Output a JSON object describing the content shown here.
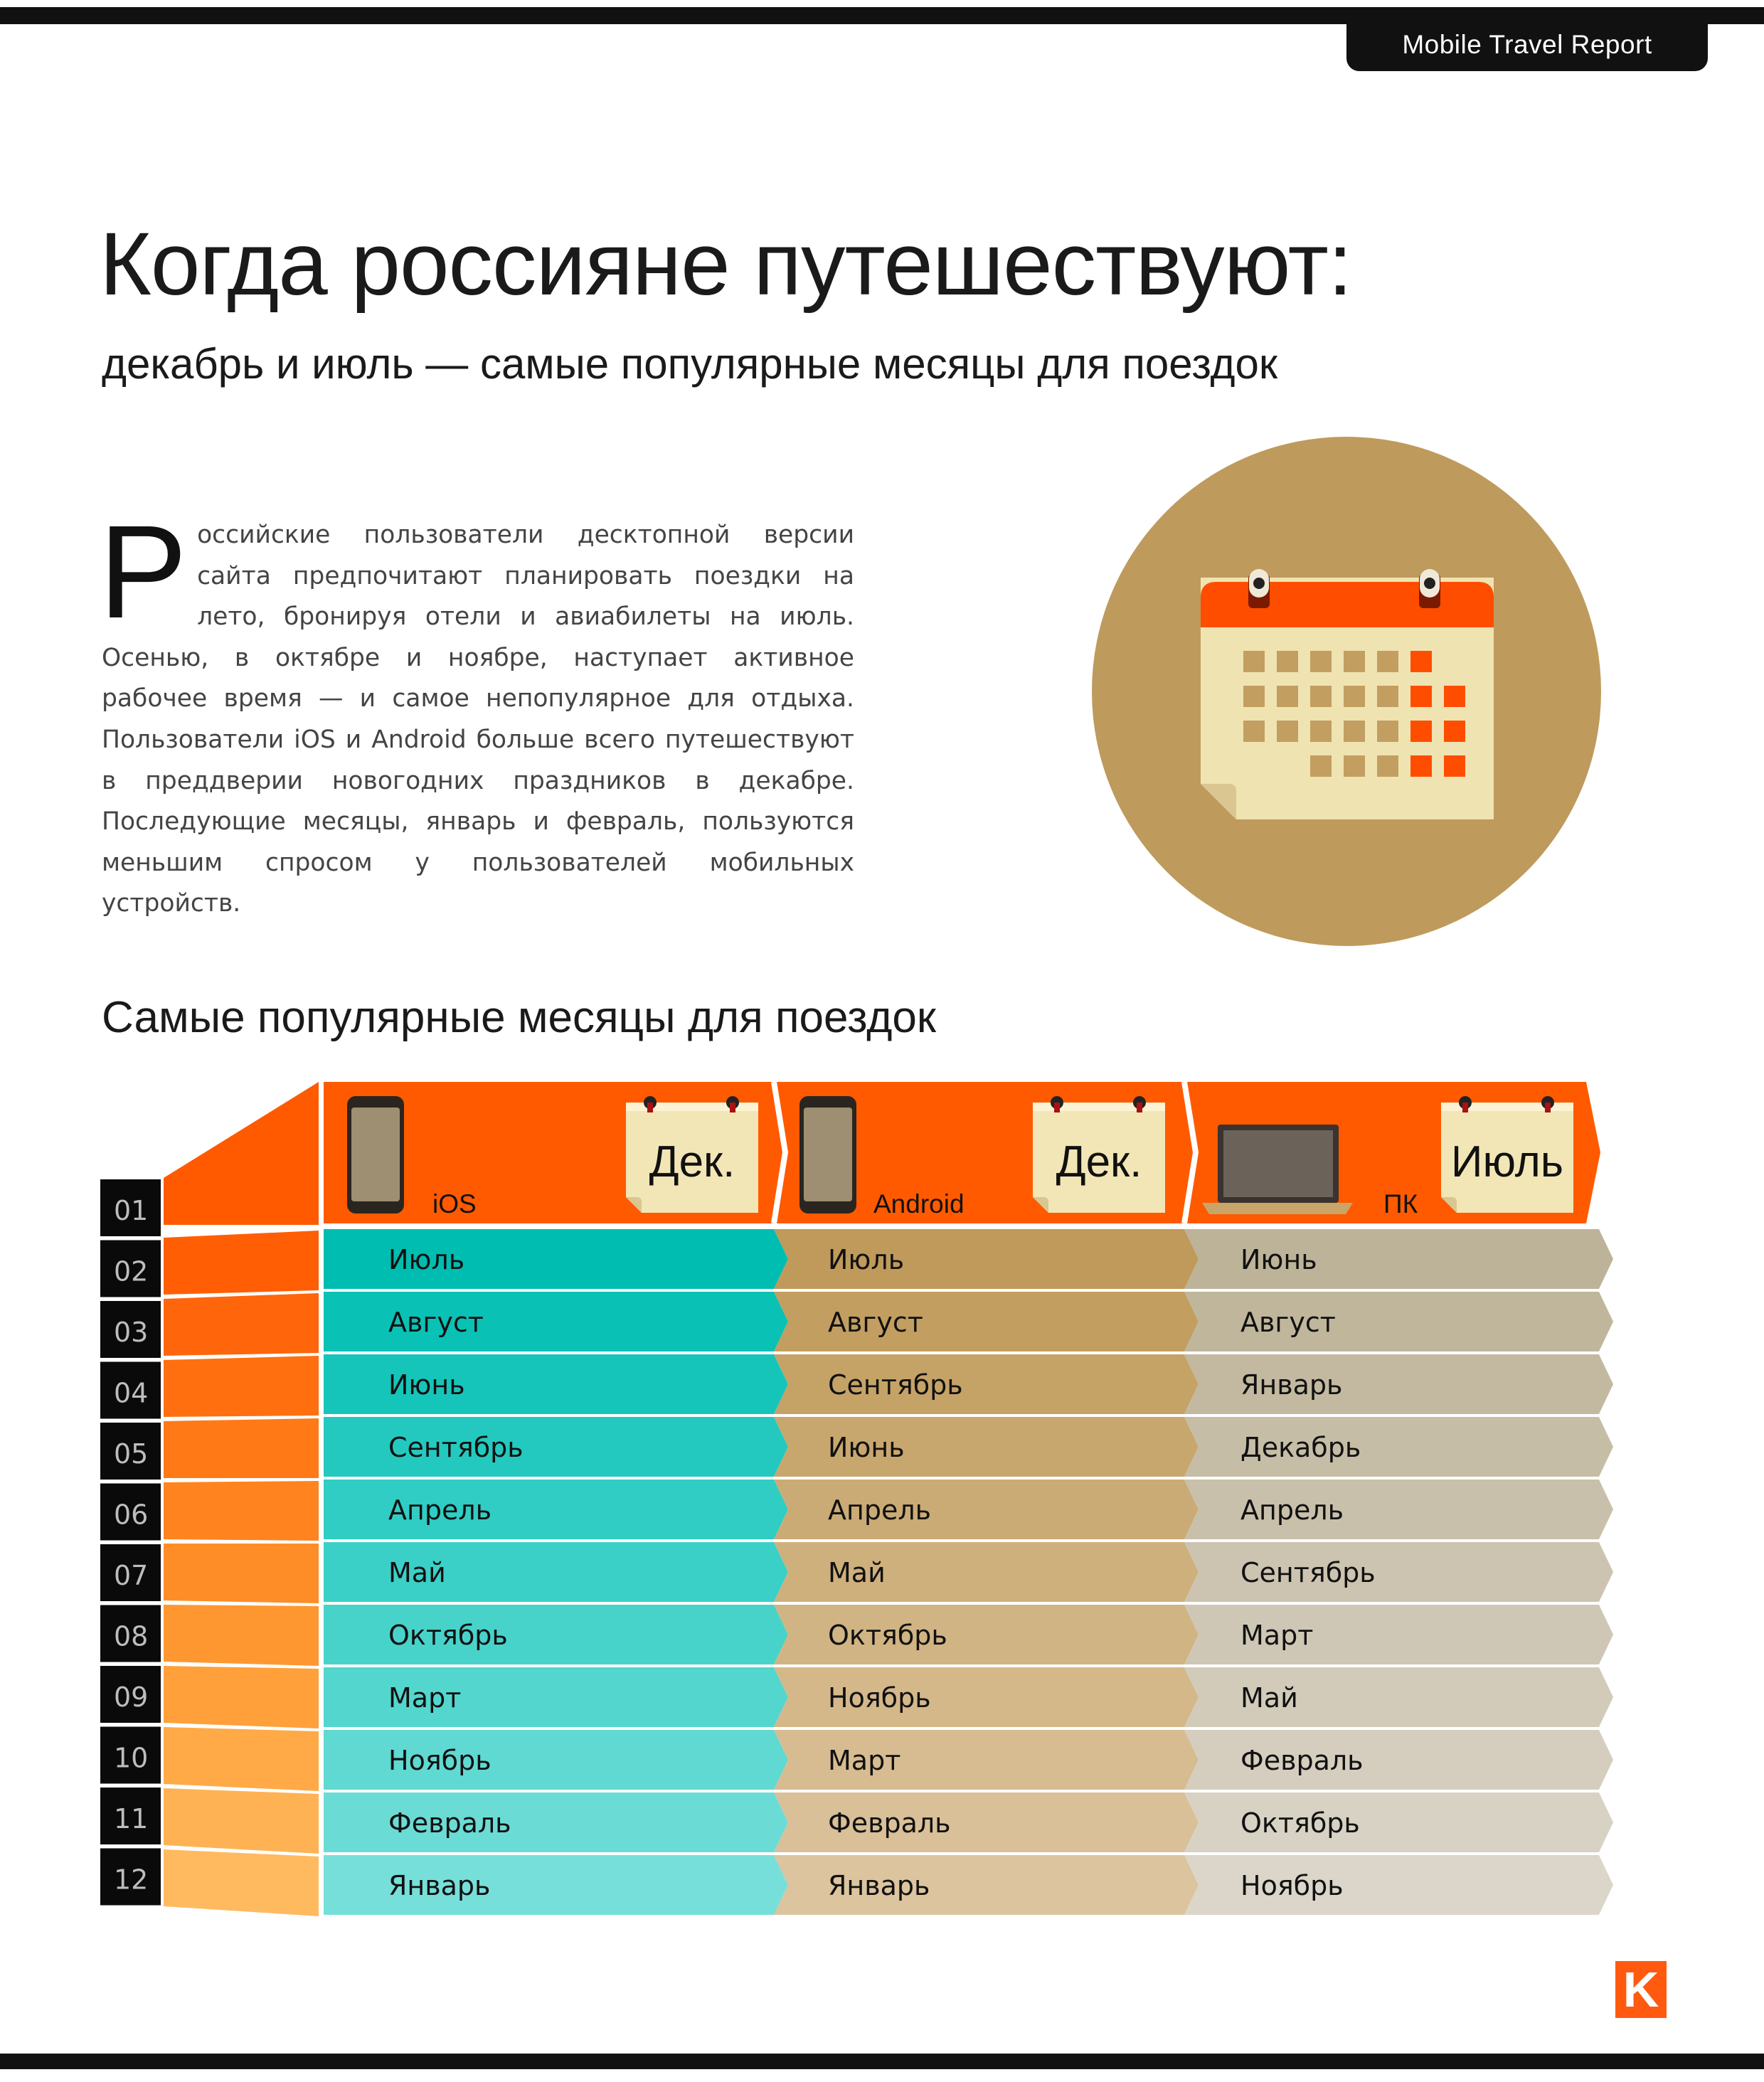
{
  "header": {
    "report_title": "Mobile Travel Report"
  },
  "title": "Когда россияне путешествуют:",
  "subtitle": "декабрь и июль — самые популярные месяцы для поездок",
  "intro": {
    "drop_cap": "Р",
    "text": "оссийские пользователи десктопной версии сайта предпочитают планировать поездки на лето, бронируя отели и авиабилеты на июль. Осенью, в октябре и ноябре, наступает активное рабочее время — и самое непопулярное для отдыха. Пользователи iOS и Android больше всего путешествуют в преддверии новогодних праздников в декабре. Последующие месяцы, январь и февраль, пользуются меньшим спросом у пользователей мобильных устройств."
  },
  "section_title": "Самые популярные месяцы для поездок",
  "colors": {
    "orange": "#ff5a00",
    "teal": "#00bdb1",
    "tan": "#bf9a5a",
    "beige": "#bdb398",
    "calendar_circle": "#be9a5d",
    "logo": "#ff5a0f"
  },
  "table": {
    "ranks": [
      "01",
      "02",
      "03",
      "04",
      "05",
      "06",
      "07",
      "08",
      "09",
      "10",
      "11",
      "12"
    ],
    "columns": [
      {
        "platform": "iOS",
        "device_icon": "smartphone-icon",
        "top_month": "Дек.",
        "months": [
          "Июль",
          "Август",
          "Июнь",
          "Сентябрь",
          "Апрель",
          "Май",
          "Октябрь",
          "Март",
          "Ноябрь",
          "Февраль",
          "Январь"
        ]
      },
      {
        "platform": "Android",
        "device_icon": "smartphone-icon",
        "top_month": "Дек.",
        "months": [
          "Июль",
          "Август",
          "Сентябрь",
          "Июнь",
          "Апрель",
          "Май",
          "Октябрь",
          "Ноябрь",
          "Март",
          "Февраль",
          "Январь"
        ]
      },
      {
        "platform": "ПК",
        "device_icon": "laptop-icon",
        "top_month": "Июль",
        "months": [
          "Июнь",
          "Август",
          "Январь",
          "Декабрь",
          "Апрель",
          "Сентябрь",
          "Март",
          "Май",
          "Февраль",
          "Октябрь",
          "Ноябрь"
        ]
      }
    ]
  },
  "logo": {
    "letter": "K"
  }
}
